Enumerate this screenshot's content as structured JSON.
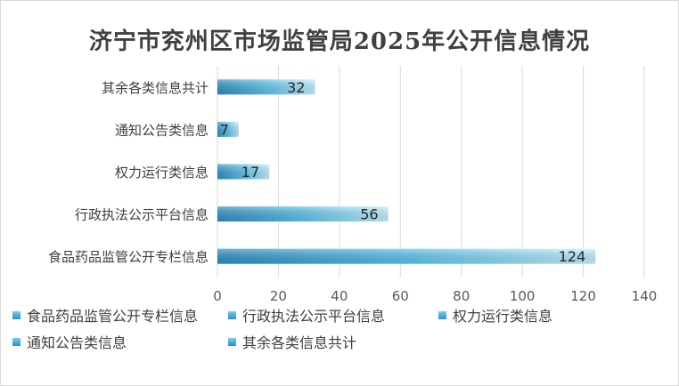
{
  "chart_data": {
    "type": "bar",
    "orientation": "horizontal",
    "title": "济宁市兖州区市场监管局2025年公开信息情况",
    "categories": [
      "食品药品监管公开专栏信息",
      "行政执法公示平台信息",
      "权力运行类信息",
      "通知公告类信息",
      "其余各类信息共计"
    ],
    "values": [
      124,
      56,
      17,
      7,
      32
    ],
    "xlim": [
      0,
      140
    ],
    "xticks": [
      0,
      20,
      40,
      60,
      80,
      100,
      120,
      140
    ],
    "grid": true,
    "legend_position": "bottom",
    "legend": [
      "食品药品监管公开专栏信息",
      "行政执法公示平台信息",
      "权力运行类信息",
      "通知公告类信息",
      "其余各类信息共计"
    ],
    "bar_gradient": [
      "#2e8ec2",
      "#bff0ff"
    ],
    "data_labels": true
  }
}
